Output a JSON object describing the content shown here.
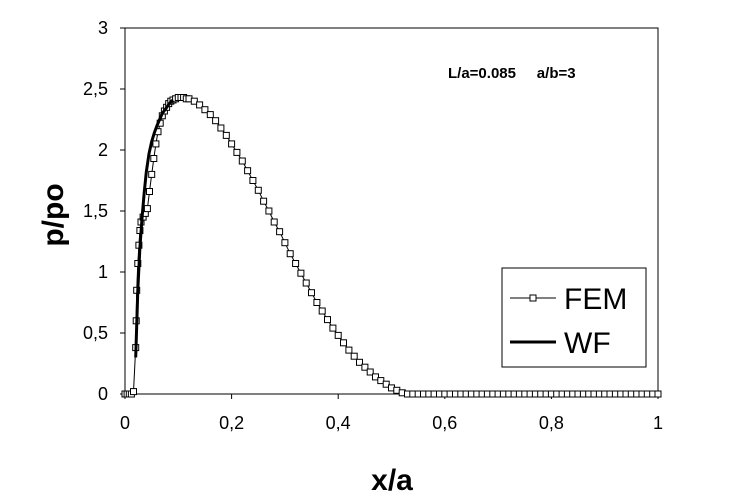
{
  "chart_data": {
    "type": "line",
    "xlabel": "x/a",
    "ylabel": "p/po",
    "xlim": [
      0,
      1
    ],
    "ylim": [
      0,
      3
    ],
    "x_ticks": [
      "0",
      "0,2",
      "0,4",
      "0,6",
      "0,8",
      "1"
    ],
    "y_ticks": [
      "0",
      "0,5",
      "1",
      "1,5",
      "2",
      "2,5",
      "3"
    ],
    "annotation": "L/a=0.085     a/b=3",
    "legend_position": "right",
    "grid": false,
    "series": [
      {
        "name": "FEM",
        "marker": "square",
        "line_width": 1,
        "x": [
          0,
          0.004,
          0.008,
          0.012,
          0.016,
          0.02,
          0.021,
          0.022,
          0.024,
          0.026,
          0.028,
          0.03,
          0.034,
          0.038,
          0.042,
          0.046,
          0.05,
          0.054,
          0.058,
          0.062,
          0.066,
          0.07,
          0.074,
          0.078,
          0.082,
          0.086,
          0.09,
          0.095,
          0.1,
          0.105,
          0.11,
          0.115,
          0.12,
          0.13,
          0.14,
          0.15,
          0.16,
          0.17,
          0.18,
          0.19,
          0.2,
          0.21,
          0.22,
          0.23,
          0.24,
          0.25,
          0.26,
          0.27,
          0.28,
          0.29,
          0.3,
          0.31,
          0.32,
          0.33,
          0.34,
          0.35,
          0.36,
          0.37,
          0.38,
          0.39,
          0.4,
          0.41,
          0.42,
          0.43,
          0.44,
          0.45,
          0.46,
          0.47,
          0.48,
          0.49,
          0.5,
          0.51,
          0.52,
          0.53,
          0.54,
          0.55,
          0.56,
          0.57,
          0.58,
          0.59,
          0.6,
          0.61,
          0.62,
          0.63,
          0.64,
          0.65,
          0.66,
          0.67,
          0.68,
          0.69,
          0.7,
          0.71,
          0.72,
          0.73,
          0.74,
          0.75,
          0.76,
          0.77,
          0.78,
          0.79,
          0.8,
          0.81,
          0.82,
          0.83,
          0.84,
          0.85,
          0.86,
          0.87,
          0.88,
          0.89,
          0.9,
          0.91,
          0.92,
          0.93,
          0.94,
          0.95,
          0.96,
          0.97,
          0.98,
          0.99,
          1
        ],
        "y": [
          0,
          0,
          0,
          0,
          0.02,
          0.38,
          0.6,
          0.85,
          1.07,
          1.22,
          1.34,
          1.41,
          1.45,
          1.48,
          1.52,
          1.66,
          1.8,
          1.93,
          2.05,
          2.15,
          2.22,
          2.28,
          2.32,
          2.35,
          2.38,
          2.4,
          2.41,
          2.42,
          2.43,
          2.43,
          2.43,
          2.42,
          2.42,
          2.4,
          2.37,
          2.33,
          2.29,
          2.24,
          2.18,
          2.12,
          2.05,
          1.98,
          1.91,
          1.83,
          1.75,
          1.67,
          1.58,
          1.5,
          1.41,
          1.33,
          1.24,
          1.15,
          1.07,
          0.99,
          0.91,
          0.83,
          0.75,
          0.68,
          0.61,
          0.54,
          0.48,
          0.42,
          0.36,
          0.31,
          0.26,
          0.22,
          0.18,
          0.14,
          0.11,
          0.08,
          0.05,
          0.03,
          0.01,
          0,
          0,
          0,
          0,
          0,
          0,
          0,
          0,
          0,
          0,
          0,
          0,
          0,
          0,
          0,
          0,
          0,
          0,
          0,
          0,
          0,
          0,
          0,
          0,
          0,
          0,
          0,
          0,
          0,
          0,
          0,
          0,
          0,
          0,
          0,
          0,
          0,
          0,
          0,
          0,
          0,
          0,
          0,
          0,
          0,
          0,
          0,
          0
        ]
      },
      {
        "name": "WF",
        "marker": "none",
        "line_width": 3,
        "x": [
          0.02,
          0.024,
          0.028,
          0.032,
          0.036,
          0.04,
          0.045,
          0.05,
          0.055,
          0.06,
          0.065,
          0.07,
          0.075,
          0.08,
          0.085,
          0.09
        ],
        "y": [
          0.3,
          0.85,
          1.2,
          1.45,
          1.65,
          1.82,
          1.97,
          2.07,
          2.14,
          2.2,
          2.25,
          2.3,
          2.33,
          2.36,
          2.39,
          2.41
        ]
      }
    ]
  }
}
